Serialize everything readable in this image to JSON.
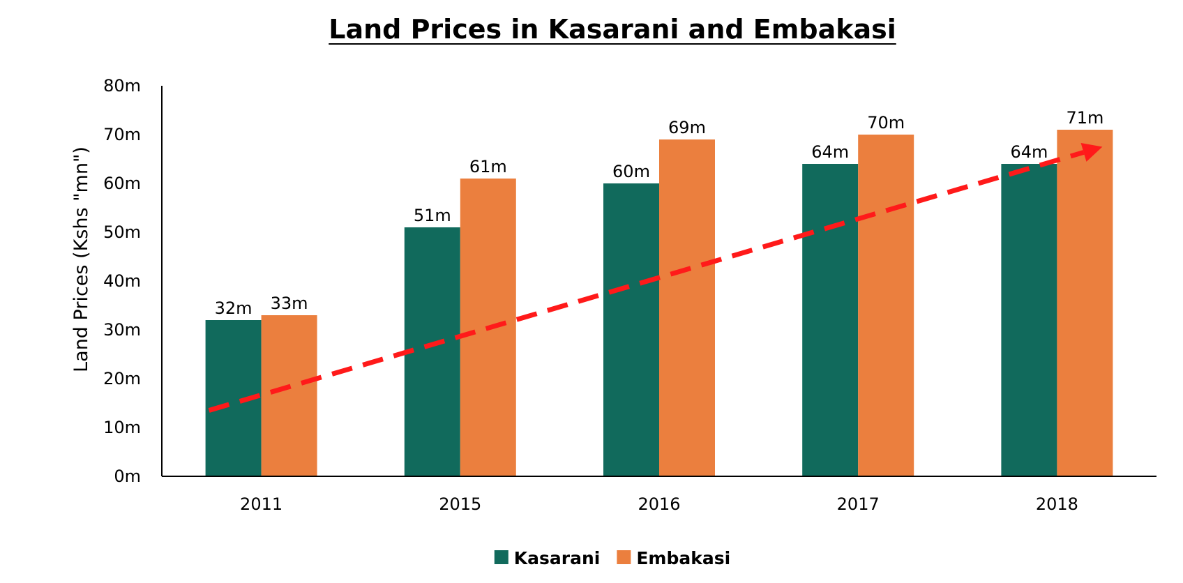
{
  "chart_data": {
    "type": "bar",
    "title": "Land Prices in Kasarani and Embakasi",
    "xlabel": "",
    "ylabel": "Land Prices (Kshs \"mn\")",
    "categories": [
      "2011",
      "2015",
      "2016",
      "2017",
      "2018"
    ],
    "series": [
      {
        "name": "Kasarani",
        "color": "#116A5C",
        "values": [
          32,
          51,
          60,
          64,
          64
        ],
        "labels": [
          "32m",
          "51m",
          "60m",
          "64m",
          "64m"
        ]
      },
      {
        "name": "Embakasi",
        "color": "#EB7F3E",
        "values": [
          33,
          61,
          69,
          70,
          71
        ],
        "labels": [
          "33m",
          "61m",
          "69m",
          "70m",
          "71m"
        ]
      }
    ],
    "ylim": [
      0,
      80
    ],
    "yticks": [
      0,
      10,
      20,
      30,
      40,
      50,
      60,
      70,
      80
    ],
    "ytick_labels": [
      "0m",
      "10m",
      "20m",
      "30m",
      "40m",
      "50m",
      "60m",
      "70m",
      "80m"
    ],
    "grid": false,
    "legend": "bottom-center",
    "trend_arrow": {
      "style": "dashed",
      "color": "#FF1A1A",
      "from": {
        "x": "2011",
        "y": 13.5
      },
      "to": {
        "x": "2018",
        "y": 67.5
      }
    }
  }
}
